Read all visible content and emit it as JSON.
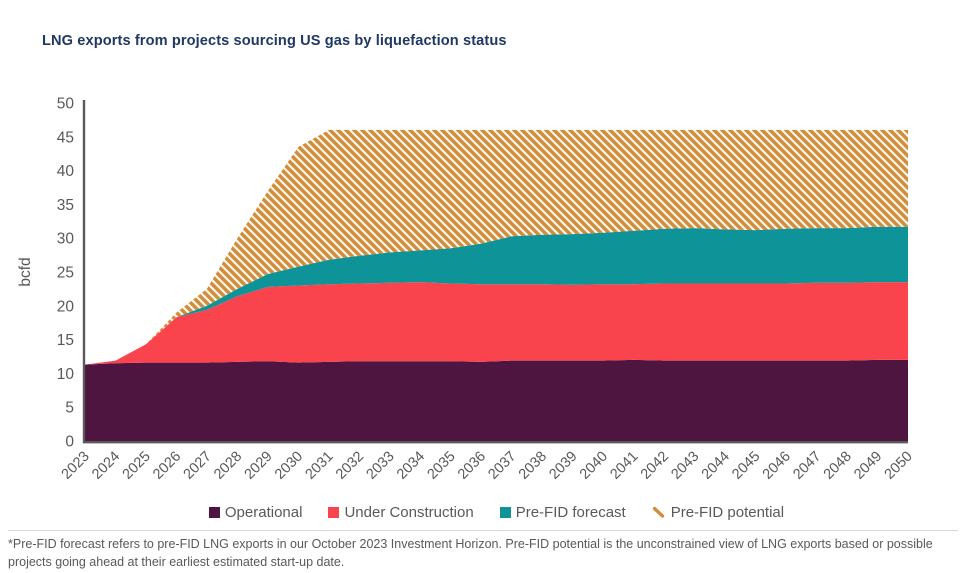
{
  "title": "LNG exports from projects sourcing US gas by liquefaction status",
  "footnote": "*Pre-FID forecast refers to pre-FID LNG exports in our October 2023 Investment Horizon. Pre-FID potential is the unconstrained view of LNG exports based or possible projects going ahead at their earliest estimated start-up date.",
  "colors": {
    "title": "#1f3864",
    "axis_text": "#595959",
    "axis_line": "#595959",
    "footnote_text": "#595959",
    "separator": "#d9d9d9",
    "background": "#ffffff",
    "hatch_background": "#fdf7ec"
  },
  "chart_data": {
    "type": "area",
    "stacked": true,
    "title": "LNG exports from projects sourcing US gas by liquefaction status",
    "xlabel": "",
    "ylabel": "bcfd",
    "ylim": [
      0,
      50
    ],
    "ytick_step": 5,
    "grid": false,
    "legend_position": "bottom",
    "x": [
      2023,
      2024,
      2025,
      2026,
      2027,
      2028,
      2029,
      2030,
      2031,
      2032,
      2033,
      2034,
      2035,
      2036,
      2037,
      2038,
      2039,
      2040,
      2041,
      2042,
      2043,
      2044,
      2045,
      2046,
      2047,
      2048,
      2049,
      2050
    ],
    "series": [
      {
        "name": "Operational",
        "color": "#4d1540",
        "values": [
          11.3,
          11.5,
          11.6,
          11.6,
          11.6,
          11.7,
          11.8,
          11.6,
          11.7,
          11.8,
          11.8,
          11.8,
          11.8,
          11.7,
          11.9,
          11.9,
          11.9,
          11.9,
          12.0,
          11.9,
          11.9,
          11.9,
          11.9,
          11.9,
          11.9,
          11.9,
          12.0,
          12.0
        ]
      },
      {
        "name": "Under Construction",
        "color": "#f9444e",
        "values": [
          0,
          0.4,
          2.7,
          6.7,
          7.8,
          9.7,
          11.0,
          11.4,
          11.5,
          11.5,
          11.6,
          11.7,
          11.5,
          11.5,
          11.3,
          11.3,
          11.2,
          11.3,
          11.2,
          11.4,
          11.4,
          11.4,
          11.4,
          11.4,
          11.5,
          11.5,
          11.5,
          11.5
        ]
      },
      {
        "name": "Pre-FID forecast",
        "color": "#0e9399",
        "values": [
          0,
          0,
          0,
          0,
          0.6,
          1.1,
          1.9,
          2.8,
          3.6,
          4.1,
          4.5,
          4.7,
          5.2,
          6.0,
          7.1,
          7.3,
          7.5,
          7.6,
          7.9,
          8.1,
          8.2,
          8.0,
          7.9,
          8.1,
          8.1,
          8.1,
          8.2,
          8.2
        ]
      },
      {
        "name": "Pre-FID potential",
        "color": "#d18d3c",
        "pattern": "diagonal-hatch",
        "values": [
          0,
          0,
          0,
          0.7,
          2.5,
          7.5,
          12.3,
          17.7,
          19.2,
          18.6,
          18.1,
          17.8,
          17.5,
          16.8,
          15.7,
          15.5,
          15.4,
          15.2,
          14.9,
          14.6,
          14.5,
          14.7,
          14.8,
          14.6,
          14.5,
          14.5,
          14.3,
          14.3
        ]
      }
    ]
  }
}
